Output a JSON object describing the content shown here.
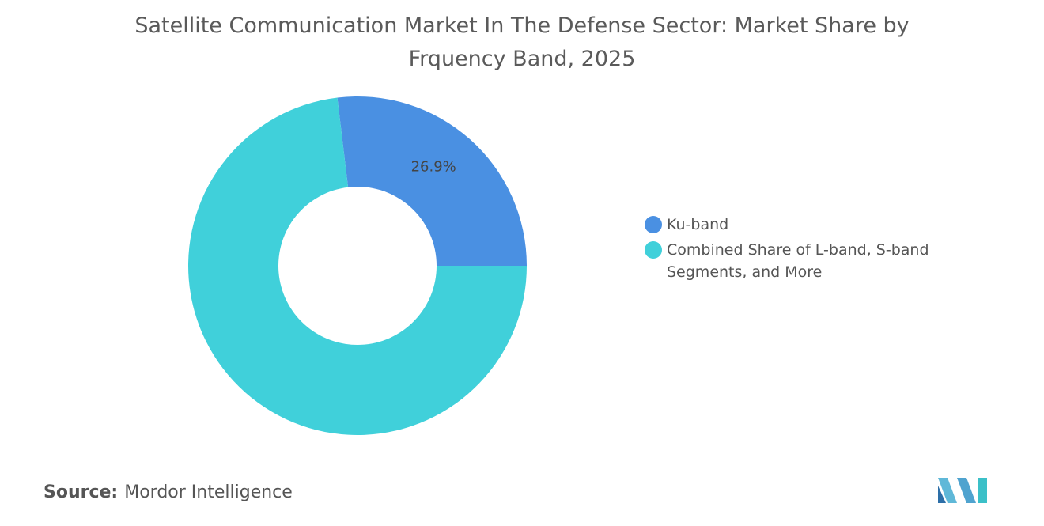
{
  "chart_data": {
    "type": "donut",
    "title": "Satellite Communication Market In The Defense Sector: Market Share by Frquency Band, 2025",
    "categories": [
      "Ku-band",
      "Combined Share of L-band, S-band Segments, and More"
    ],
    "values": [
      26.9,
      73.1
    ],
    "value_labels": [
      "26.9%",
      null
    ],
    "colors": [
      "#4a90e2",
      "#40d0da"
    ],
    "legend": "right"
  },
  "source_label": "Source:",
  "source": "Mordor Intelligence"
}
